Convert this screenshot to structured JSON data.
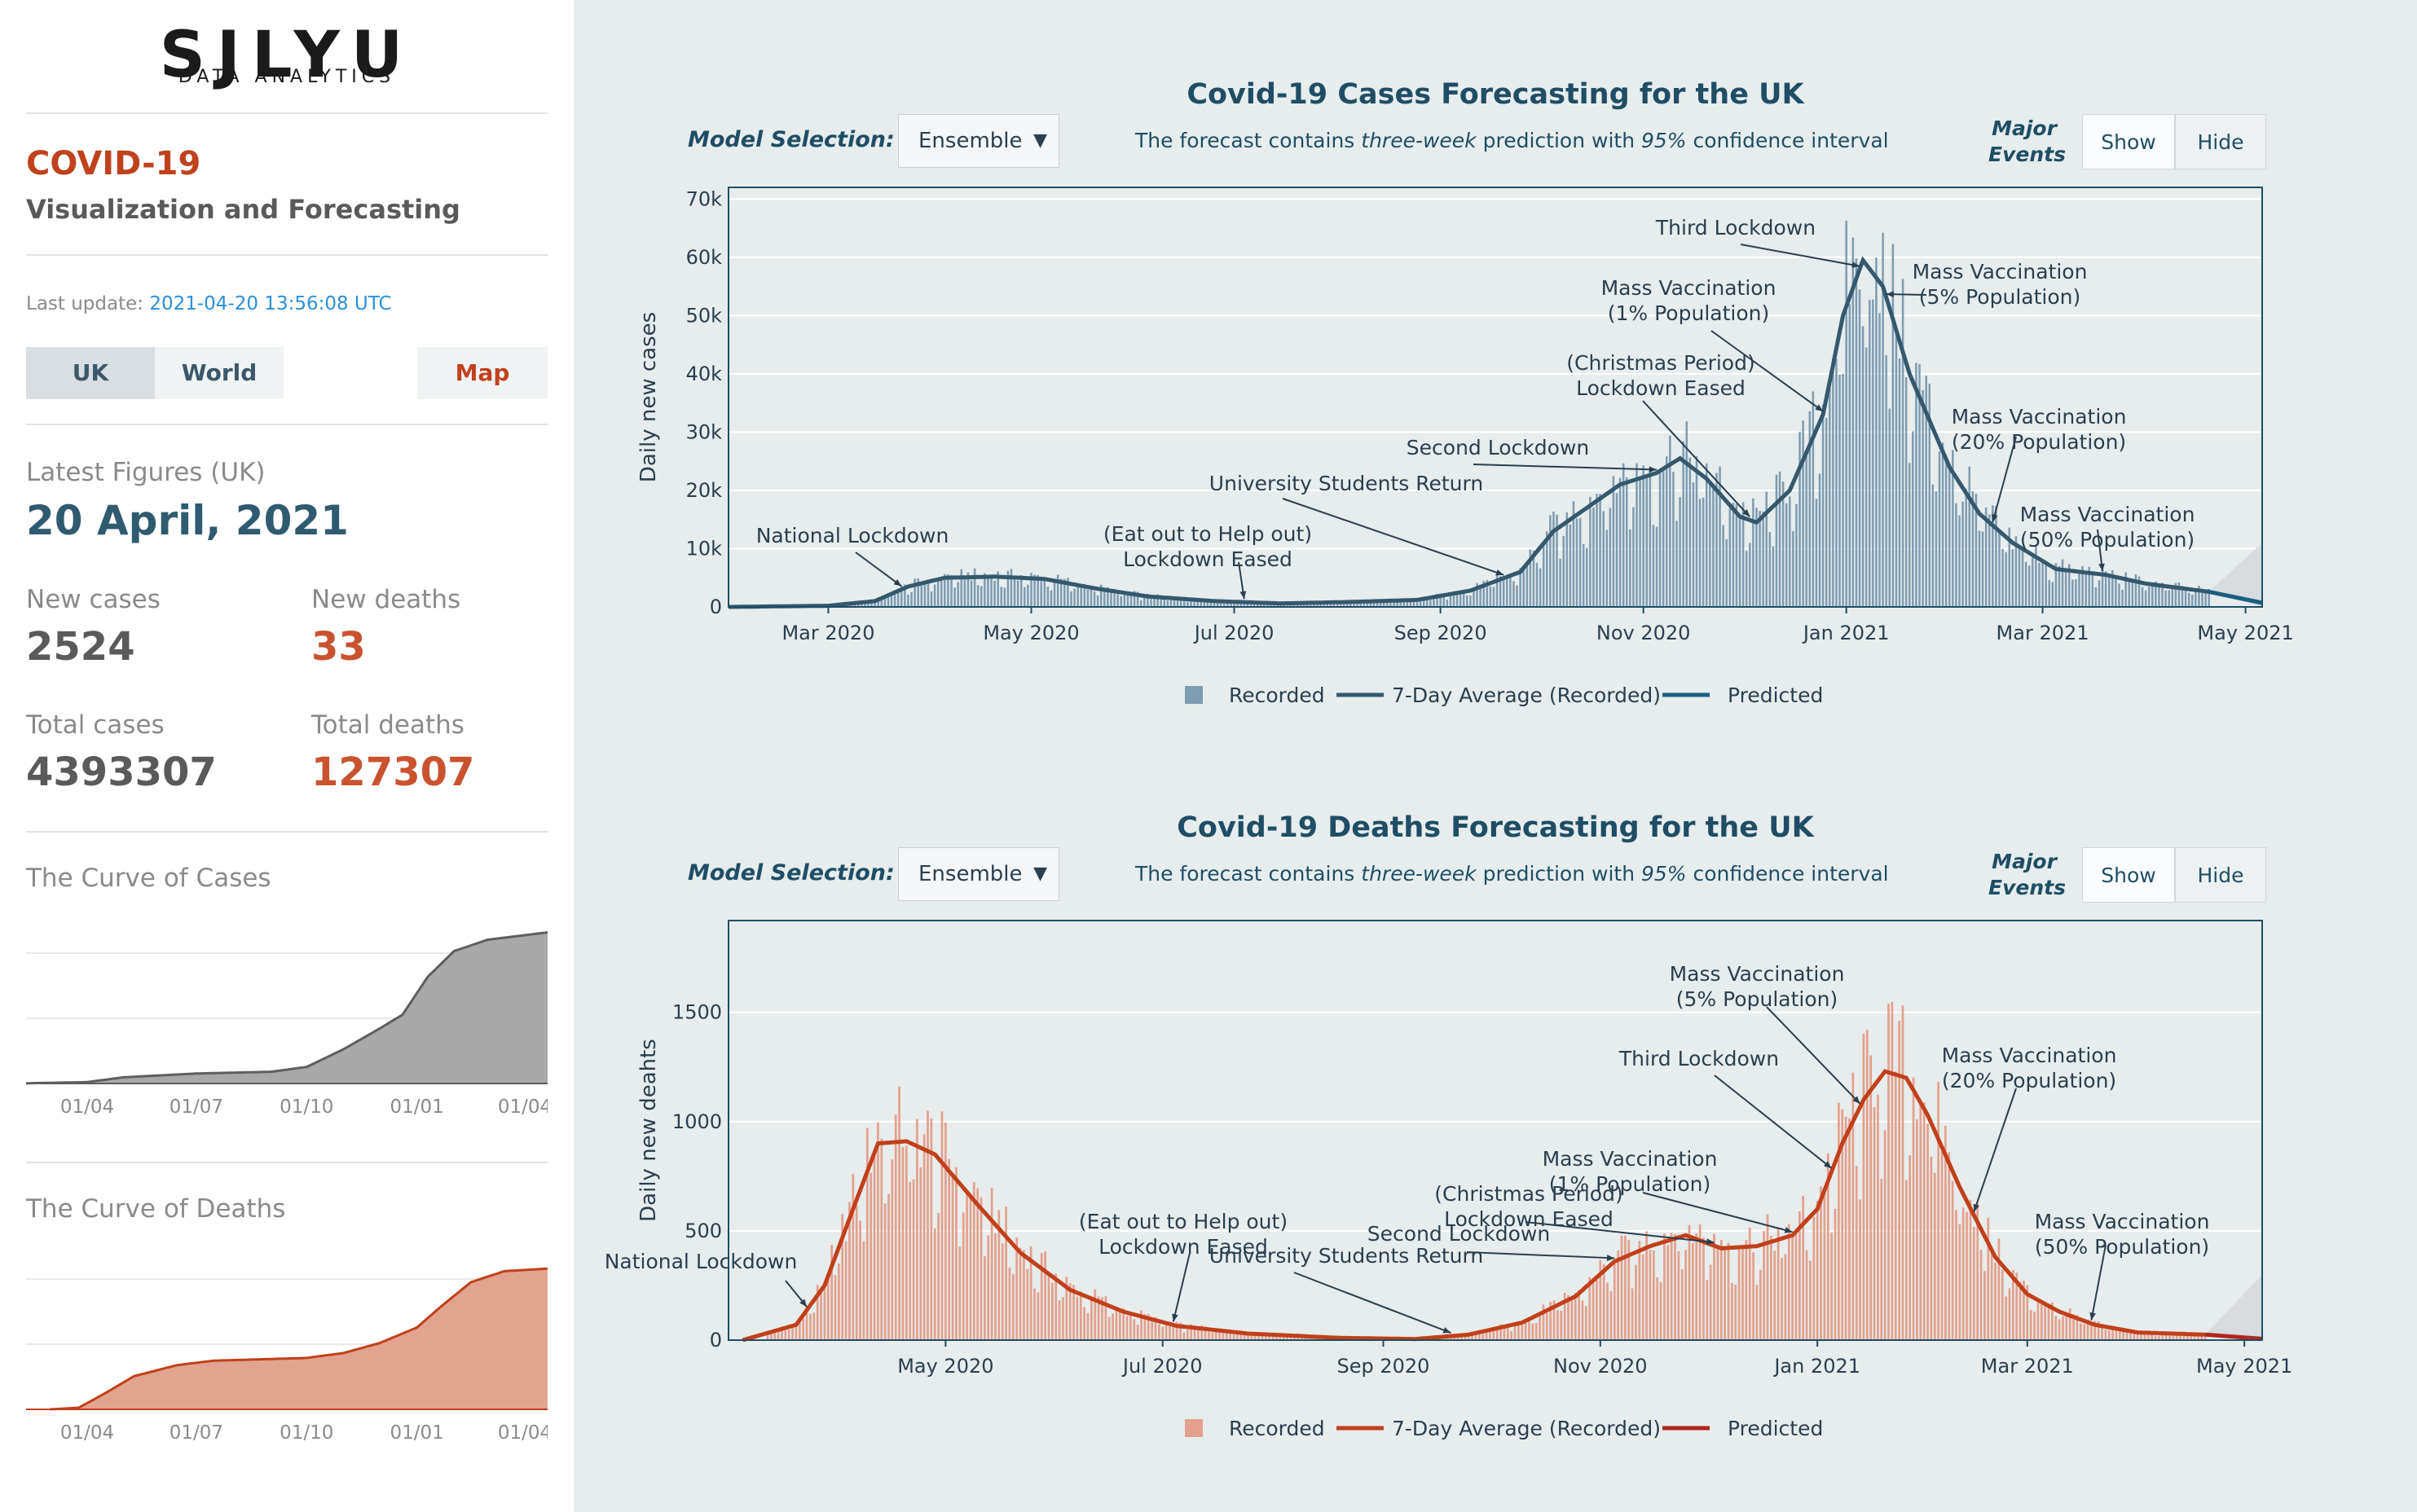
{
  "sidebar": {
    "logo": {
      "main": "SJLYU",
      "sub": "DATA ANALYTICS"
    },
    "title": "COVID-19",
    "subtitle": "Visualization and Forecasting",
    "last_update_label": "Last update:",
    "last_update_value": "2021-04-20 13:56:08 UTC",
    "tabs": {
      "uk": "UK",
      "world": "World",
      "map": "Map"
    },
    "latest_label": "Latest Figures (UK)",
    "latest_date": "20 April, 2021",
    "new_cases_label": "New cases",
    "new_cases": "2524",
    "new_deaths_label": "New deaths",
    "new_deaths": "33",
    "total_cases_label": "Total cases",
    "total_cases": "4393307",
    "total_deaths_label": "Total deaths",
    "total_deaths": "127307",
    "curve_cases_label": "The Curve of Cases",
    "curve_deaths_label": "The Curve of Deaths",
    "colors": {
      "accent": "#c0421d",
      "navy": "#2f5b70"
    }
  },
  "controls": {
    "model_label": "Model Selection:",
    "model_value": "Ensemble",
    "forecast_note": {
      "pre": "The forecast contains ",
      "em1": "three-week",
      "mid": " prediction with ",
      "em2": "95%",
      "post": " confidence interval"
    },
    "major_events": {
      "line1": "Major",
      "line2": "Events"
    },
    "show": "Show",
    "hide": "Hide"
  },
  "chart_data": [
    {
      "type": "line",
      "title": "Covid-19 Cases Forecasting for the UK",
      "ylabel": "Daily new cases",
      "ylim": [
        0,
        72000
      ],
      "yticks": [
        0,
        10000,
        20000,
        30000,
        40000,
        50000,
        60000,
        70000
      ],
      "ytick_labels": [
        "0",
        "10k",
        "20k",
        "30k",
        "40k",
        "50k",
        "60k",
        "70k"
      ],
      "xlim": [
        "2020-01-31",
        "2021-05-06"
      ],
      "xticks": [
        "2020-03-01",
        "2020-05-01",
        "2020-07-01",
        "2020-09-01",
        "2020-11-01",
        "2021-01-01",
        "2021-03-01",
        "2021-05-01"
      ],
      "xtick_labels": [
        "Mar 2020",
        "May 2020",
        "Jul 2020",
        "Sep 2020",
        "Nov 2020",
        "Jan 2021",
        "Mar 2021",
        "May 2021"
      ],
      "colors": {
        "bar": "#7f9cb0",
        "avg": "#35586c",
        "pred": "#1b5e82"
      },
      "series": [
        {
          "name": "Recorded",
          "kind": "bar"
        },
        {
          "name": "7-Day Average (Recorded)",
          "kind": "line",
          "points": [
            [
              "2020-01-31",
              0
            ],
            [
              "2020-03-01",
              200
            ],
            [
              "2020-03-15",
              1000
            ],
            [
              "2020-03-25",
              3500
            ],
            [
              "2020-04-05",
              5000
            ],
            [
              "2020-04-20",
              5200
            ],
            [
              "2020-05-05",
              4800
            ],
            [
              "2020-05-20",
              3200
            ],
            [
              "2020-06-05",
              1800
            ],
            [
              "2020-06-25",
              1000
            ],
            [
              "2020-07-15",
              600
            ],
            [
              "2020-08-05",
              850
            ],
            [
              "2020-08-25",
              1200
            ],
            [
              "2020-09-10",
              2800
            ],
            [
              "2020-09-25",
              6000
            ],
            [
              "2020-10-05",
              13000
            ],
            [
              "2020-10-15",
              17000
            ],
            [
              "2020-10-25",
              21000
            ],
            [
              "2020-11-05",
              23000
            ],
            [
              "2020-11-12",
              25500
            ],
            [
              "2020-11-20",
              22000
            ],
            [
              "2020-11-30",
              15500
            ],
            [
              "2020-12-05",
              14500
            ],
            [
              "2020-12-15",
              20000
            ],
            [
              "2020-12-25",
              33000
            ],
            [
              "2020-12-31",
              50000
            ],
            [
              "2021-01-06",
              59500
            ],
            [
              "2021-01-12",
              55000
            ],
            [
              "2021-01-20",
              40000
            ],
            [
              "2021-02-01",
              24000
            ],
            [
              "2021-02-10",
              16000
            ],
            [
              "2021-02-20",
              11000
            ],
            [
              "2021-03-05",
              6500
            ],
            [
              "2021-03-20",
              5500
            ],
            [
              "2021-04-01",
              4000
            ],
            [
              "2021-04-20",
              2600
            ]
          ]
        },
        {
          "name": "Predicted",
          "kind": "line",
          "points": [
            [
              "2021-04-20",
              2600
            ],
            [
              "2021-05-06",
              700
            ]
          ]
        }
      ],
      "confidence_band": {
        "start": "2021-04-20",
        "end": "2021-05-06",
        "upper_end": 11000,
        "lower_end": 0
      },
      "annotations": [
        {
          "lines": [
            "National Lockdown"
          ],
          "date": "2020-03-23"
        },
        {
          "lines": [
            "(Eat out to Help out)",
            "Lockdown Eased"
          ],
          "date": "2020-07-04"
        },
        {
          "lines": [
            "University Students Return"
          ],
          "date": "2020-09-20"
        },
        {
          "lines": [
            "Second Lockdown"
          ],
          "date": "2020-11-05"
        },
        {
          "lines": [
            "(Christmas Period)",
            "Lockdown Eased"
          ],
          "date": "2020-12-03"
        },
        {
          "lines": [
            "Mass Vaccination",
            "(1% Population)"
          ],
          "date": "2020-12-25"
        },
        {
          "lines": [
            "Third Lockdown"
          ],
          "date": "2021-01-05"
        },
        {
          "lines": [
            "Mass Vaccination",
            "(5% Population)"
          ],
          "date": "2021-01-13"
        },
        {
          "lines": [
            "Mass Vaccination",
            "(20% Population)"
          ],
          "date": "2021-02-14"
        },
        {
          "lines": [
            "Mass Vaccination",
            "(50% Population)"
          ],
          "date": "2021-03-19"
        }
      ]
    },
    {
      "type": "line",
      "title": "Covid-19 Deaths Forecasting for the UK",
      "ylabel": "Daily new deahts",
      "ylim": [
        0,
        1920
      ],
      "yticks": [
        0,
        500,
        1000,
        1500
      ],
      "ytick_labels": [
        "0",
        "500",
        "1000",
        "1500"
      ],
      "xlim": [
        "2020-03-01",
        "2021-05-06"
      ],
      "xticks": [
        "2020-05-01",
        "2020-07-01",
        "2020-09-01",
        "2020-11-01",
        "2021-01-01",
        "2021-03-01",
        "2021-05-01"
      ],
      "xtick_labels": [
        "May 2020",
        "Jul 2020",
        "Sep 2020",
        "Nov 2020",
        "Jan 2021",
        "Mar 2021",
        "May 2021"
      ],
      "colors": {
        "bar": "#e4a08f",
        "avg": "#c0401a",
        "pred": "#b0261f"
      },
      "series": [
        {
          "name": "Recorded",
          "kind": "bar"
        },
        {
          "name": "7-Day Average (Recorded)",
          "kind": "line",
          "points": [
            [
              "2020-03-05",
              0
            ],
            [
              "2020-03-20",
              70
            ],
            [
              "2020-03-28",
              250
            ],
            [
              "2020-04-05",
              600
            ],
            [
              "2020-04-12",
              900
            ],
            [
              "2020-04-20",
              910
            ],
            [
              "2020-04-28",
              850
            ],
            [
              "2020-05-10",
              620
            ],
            [
              "2020-05-22",
              400
            ],
            [
              "2020-06-05",
              230
            ],
            [
              "2020-06-20",
              130
            ],
            [
              "2020-07-05",
              65
            ],
            [
              "2020-07-25",
              30
            ],
            [
              "2020-08-20",
              10
            ],
            [
              "2020-09-10",
              5
            ],
            [
              "2020-09-25",
              25
            ],
            [
              "2020-10-10",
              80
            ],
            [
              "2020-10-25",
              200
            ],
            [
              "2020-11-05",
              360
            ],
            [
              "2020-11-15",
              430
            ],
            [
              "2020-11-25",
              480
            ],
            [
              "2020-12-05",
              420
            ],
            [
              "2020-12-15",
              430
            ],
            [
              "2020-12-25",
              480
            ],
            [
              "2021-01-01",
              600
            ],
            [
              "2021-01-08",
              900
            ],
            [
              "2021-01-14",
              1100
            ],
            [
              "2021-01-20",
              1230
            ],
            [
              "2021-01-26",
              1200
            ],
            [
              "2021-02-01",
              1030
            ],
            [
              "2021-02-10",
              700
            ],
            [
              "2021-02-20",
              380
            ],
            [
              "2021-03-01",
              210
            ],
            [
              "2021-03-10",
              130
            ],
            [
              "2021-03-20",
              70
            ],
            [
              "2021-04-01",
              35
            ],
            [
              "2021-04-20",
              25
            ]
          ]
        },
        {
          "name": "Predicted",
          "kind": "line",
          "points": [
            [
              "2021-04-20",
              25
            ],
            [
              "2021-05-06",
              6
            ]
          ]
        }
      ],
      "confidence_band": {
        "start": "2021-04-20",
        "end": "2021-05-06",
        "upper_end": 300,
        "lower_end": 0
      },
      "annotations": [
        {
          "lines": [
            "National Lockdown"
          ],
          "date": "2020-03-23"
        },
        {
          "lines": [
            "(Eat out to Help out)",
            "Lockdown Eased"
          ],
          "date": "2020-07-04"
        },
        {
          "lines": [
            "University Students Return"
          ],
          "date": "2020-09-20"
        },
        {
          "lines": [
            "Second Lockdown"
          ],
          "date": "2020-11-05"
        },
        {
          "lines": [
            "(Christmas Period)",
            "Lockdown Eased"
          ],
          "date": "2020-12-03"
        },
        {
          "lines": [
            "Mass Vaccination",
            "(1% Population)"
          ],
          "date": "2020-12-25"
        },
        {
          "lines": [
            "Third Lockdown"
          ],
          "date": "2021-01-05"
        },
        {
          "lines": [
            "Mass Vaccination",
            "(5% Population)"
          ],
          "date": "2021-01-13"
        },
        {
          "lines": [
            "Mass Vaccination",
            "(20% Population)"
          ],
          "date": "2021-02-14"
        },
        {
          "lines": [
            "Mass Vaccination",
            "(50% Population)"
          ],
          "date": "2021-03-19"
        }
      ]
    },
    {
      "type": "area",
      "title": "The Curve of Cases",
      "xtick_labels": [
        "01/04",
        "01/07",
        "01/10",
        "01/01",
        "01/04"
      ],
      "ylim": [
        0,
        4500000
      ],
      "colors": {
        "fill": "#a8a8a8",
        "line": "#5e5e5e"
      },
      "points": [
        [
          "2020-02-01",
          0
        ],
        [
          "2020-04-01",
          40000
        ],
        [
          "2020-05-01",
          180000
        ],
        [
          "2020-07-01",
          290000
        ],
        [
          "2020-09-01",
          340000
        ],
        [
          "2020-10-01",
          480000
        ],
        [
          "2020-11-01",
          1000000
        ],
        [
          "2020-12-01",
          1600000
        ],
        [
          "2020-12-20",
          2000000
        ],
        [
          "2021-01-10",
          3100000
        ],
        [
          "2021-02-01",
          3850000
        ],
        [
          "2021-03-01",
          4180000
        ],
        [
          "2021-04-20",
          4393307
        ]
      ]
    },
    {
      "type": "area",
      "title": "The Curve of Deaths",
      "xtick_labels": [
        "01/04",
        "01/07",
        "01/10",
        "01/01",
        "01/04"
      ],
      "ylim": [
        0,
        140000
      ],
      "colors": {
        "fill": "#e0a48f",
        "line": "#c0401a"
      },
      "points": [
        [
          "2020-03-01",
          0
        ],
        [
          "2020-03-25",
          1500
        ],
        [
          "2020-04-15",
          14000
        ],
        [
          "2020-05-10",
          30000
        ],
        [
          "2020-06-15",
          40000
        ],
        [
          "2020-07-15",
          44000
        ],
        [
          "2020-10-01",
          46500
        ],
        [
          "2020-11-01",
          51000
        ],
        [
          "2020-12-01",
          60000
        ],
        [
          "2021-01-01",
          74000
        ],
        [
          "2021-01-20",
          92000
        ],
        [
          "2021-02-15",
          115000
        ],
        [
          "2021-03-15",
          125000
        ],
        [
          "2021-04-20",
          127307
        ]
      ]
    }
  ],
  "legend": {
    "recorded": "Recorded",
    "avg": "7-Day Average (Recorded)",
    "pred": "Predicted"
  }
}
